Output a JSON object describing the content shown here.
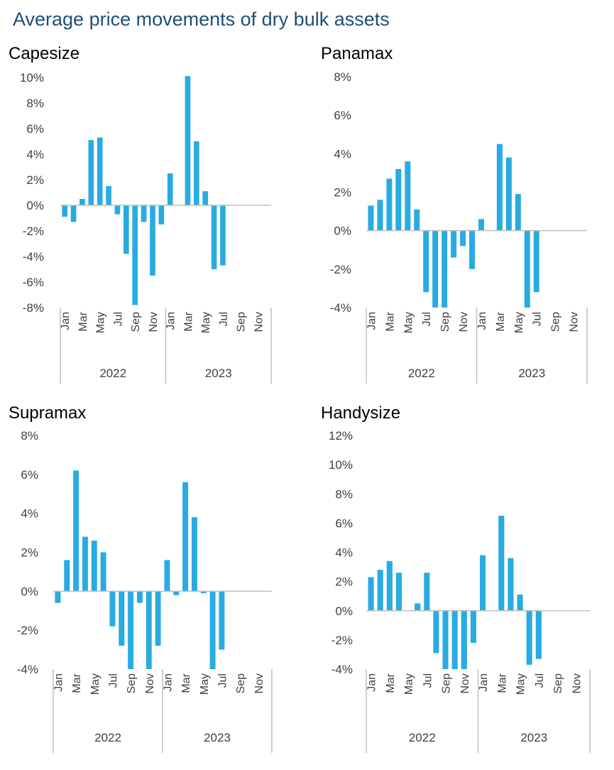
{
  "title": "Average price movements of dry bulk assets",
  "bar_color": "#29abe2",
  "axis_color": "#bfbfbf",
  "chart_data": [
    {
      "type": "bar",
      "title": "Capesize",
      "categories": [
        "Jan",
        "",
        "Mar",
        "",
        "May",
        "",
        "Jul",
        "",
        "Sep",
        "",
        "Nov",
        "",
        "Jan",
        "",
        "Mar",
        "",
        "May",
        "",
        "Jul",
        "",
        "Sep",
        "",
        "Nov",
        ""
      ],
      "years": [
        "2022",
        "2023"
      ],
      "values": [
        -0.9,
        -1.3,
        0.5,
        5.1,
        5.3,
        1.5,
        -0.7,
        -3.8,
        -7.8,
        -1.3,
        -5.5,
        -1.5,
        2.5,
        null,
        10.1,
        5.0,
        1.1,
        -5.0,
        -4.7,
        null,
        null,
        null,
        null,
        null
      ],
      "ylim": [
        -8,
        10
      ],
      "yticks": [
        -8,
        -6,
        -4,
        -2,
        0,
        2,
        4,
        6,
        8,
        10
      ],
      "ytick_labels": [
        "-8%",
        "-6%",
        "-4%",
        "-2%",
        "0%",
        "2%",
        "4%",
        "6%",
        "8%",
        "10%"
      ]
    },
    {
      "type": "bar",
      "title": "Panamax",
      "categories": [
        "Jan",
        "",
        "Mar",
        "",
        "May",
        "",
        "Jul",
        "",
        "Sep",
        "",
        "Nov",
        "",
        "Jan",
        "",
        "Mar",
        "",
        "May",
        "",
        "Jul",
        "",
        "Sep",
        "",
        "Nov",
        ""
      ],
      "years": [
        "2022",
        "2023"
      ],
      "values": [
        1.3,
        1.6,
        2.7,
        3.2,
        3.6,
        1.1,
        -3.2,
        -4.0,
        -4.0,
        -1.4,
        -0.8,
        -2.0,
        0.6,
        null,
        4.5,
        3.8,
        1.9,
        -4.0,
        -3.2,
        null,
        null,
        null,
        null,
        null
      ],
      "ylim": [
        -4,
        8
      ],
      "yticks": [
        -4,
        -2,
        0,
        2,
        4,
        6,
        8
      ],
      "ytick_labels": [
        "-4%",
        "-2%",
        "0%",
        "2%",
        "4%",
        "6%",
        "8%"
      ]
    },
    {
      "type": "bar",
      "title": "Supramax",
      "categories": [
        "Jan",
        "",
        "Mar",
        "",
        "May",
        "",
        "Jul",
        "",
        "Sep",
        "",
        "Nov",
        "",
        "Jan",
        "",
        "Mar",
        "",
        "May",
        "",
        "Jul",
        "",
        "Sep",
        "",
        "Nov",
        ""
      ],
      "years": [
        "2022",
        "2023"
      ],
      "values": [
        -0.6,
        1.6,
        6.2,
        2.8,
        2.6,
        2.0,
        -1.8,
        -2.8,
        -4.0,
        -0.6,
        -4.0,
        -2.8,
        1.6,
        -0.2,
        5.6,
        3.8,
        -0.1,
        -4.0,
        -3.0,
        null,
        null,
        null,
        null,
        null
      ],
      "ylim": [
        -4,
        8
      ],
      "yticks": [
        -4,
        -2,
        0,
        2,
        4,
        6,
        8
      ],
      "ytick_labels": [
        "-4%",
        "-2%",
        "0%",
        "2%",
        "4%",
        "6%",
        "8%"
      ]
    },
    {
      "type": "bar",
      "title": "Handysize",
      "categories": [
        "Jan",
        "",
        "Mar",
        "",
        "May",
        "",
        "Jul",
        "",
        "Sep",
        "",
        "Nov",
        "",
        "Jan",
        "",
        "Mar",
        "",
        "May",
        "",
        "Jul",
        "",
        "Sep",
        "",
        "Nov",
        ""
      ],
      "years": [
        "2022",
        "2023"
      ],
      "values": [
        2.3,
        2.8,
        3.4,
        2.6,
        null,
        0.5,
        2.6,
        -2.9,
        -4.0,
        -4.0,
        -4.0,
        -2.2,
        3.8,
        null,
        6.5,
        3.6,
        1.1,
        -3.7,
        -3.3,
        null,
        null,
        null,
        null,
        null
      ],
      "ylim": [
        -4,
        12
      ],
      "yticks": [
        -4,
        -2,
        0,
        2,
        4,
        6,
        8,
        10,
        12
      ],
      "ytick_labels": [
        "-4%",
        "-2%",
        "0%",
        "2%",
        "4%",
        "6%",
        "8%",
        "10%",
        "12%"
      ]
    }
  ]
}
